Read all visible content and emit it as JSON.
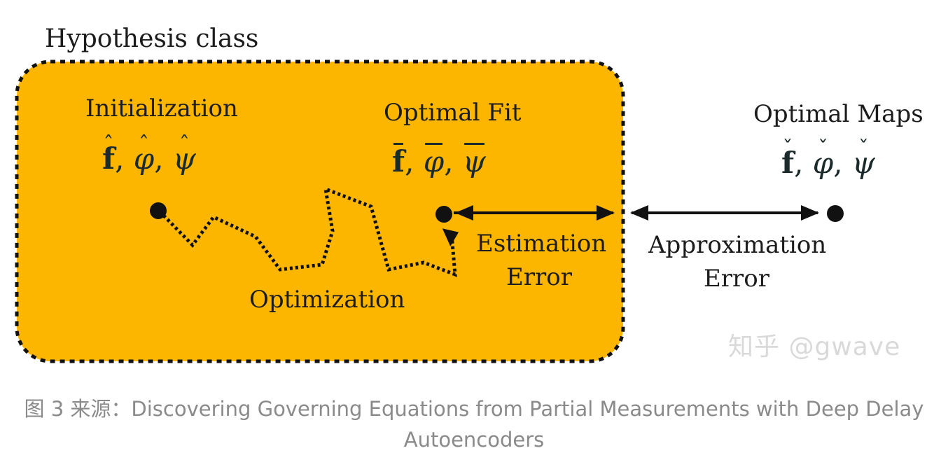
{
  "hypothesis_label": "Hypothesis class",
  "initialization": {
    "label": "Initialization",
    "math": "f̂, φ̂, ψ̂"
  },
  "optimal_fit": {
    "label": "Optimal Fit",
    "math": "f̄, φ̄, ψ̄"
  },
  "optimal_maps": {
    "label": "Optimal Maps",
    "math": "f̌, φ̌, ψ̌"
  },
  "optimization_label": "Optimization",
  "estimation_error": {
    "line1": "Estimation",
    "line2": "Error"
  },
  "approximation_error": {
    "line1": "Approximation",
    "line2": "Error"
  },
  "watermark": "知乎 @gwave",
  "caption": {
    "line1": "图 3 来源：Discovering Governing Equations from Partial Measurements with Deep Delay",
    "line2": "Autoencoders"
  },
  "colors": {
    "hypothesis_fill": "#FDB600",
    "ink": "#111111",
    "caption": "#8a8a8a"
  }
}
